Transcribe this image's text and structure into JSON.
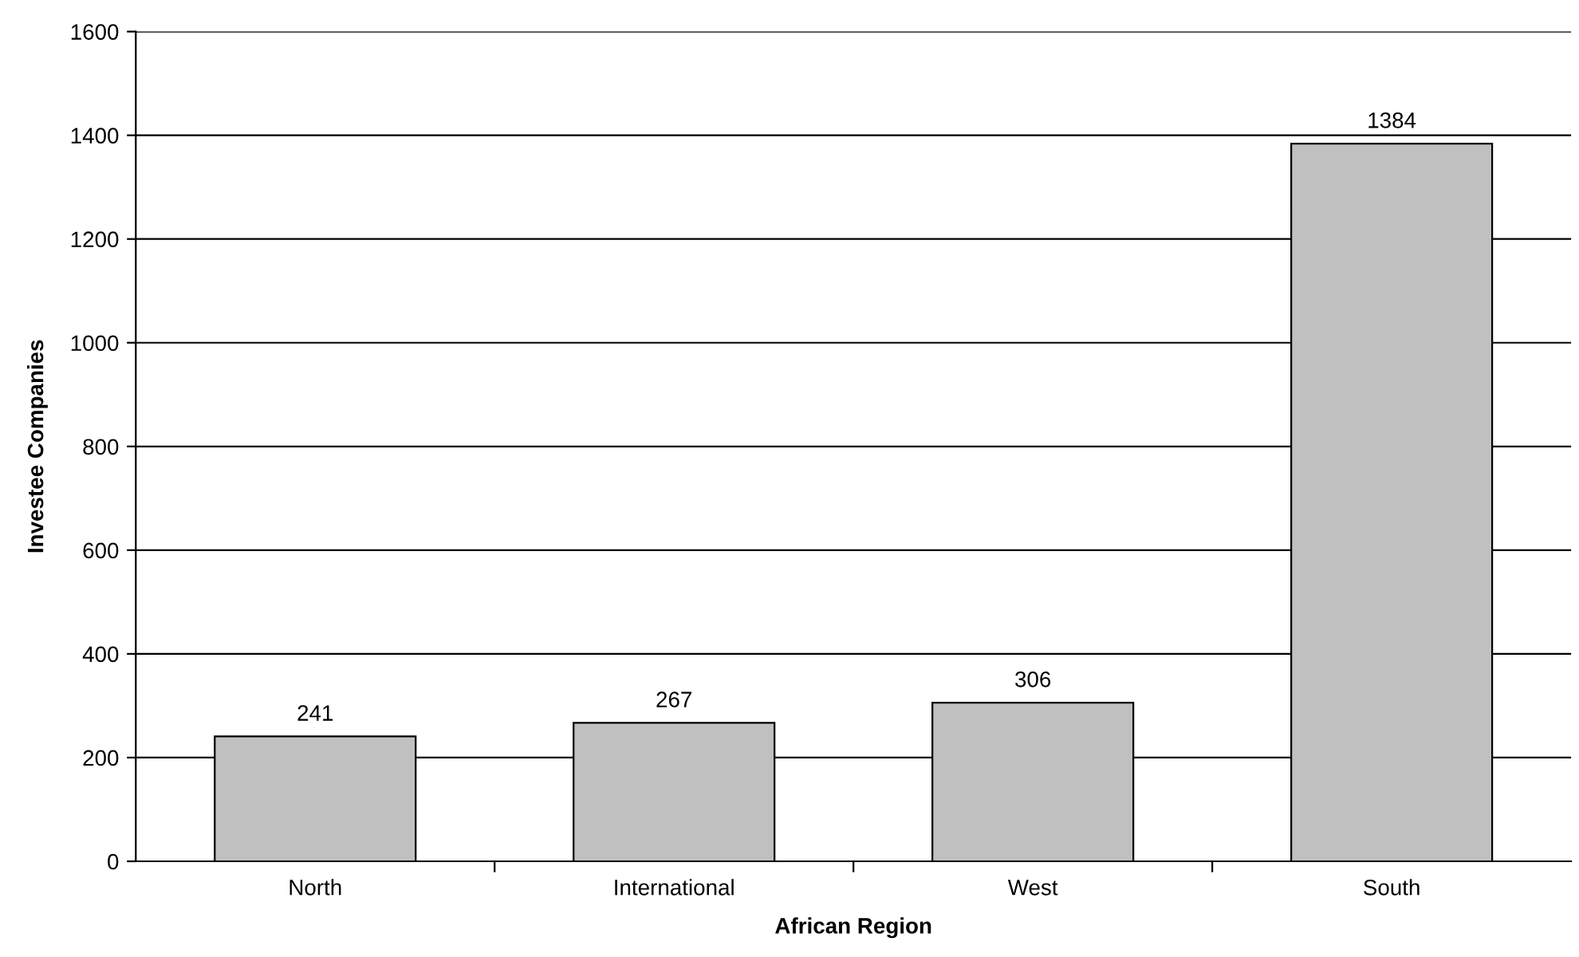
{
  "chart_data": {
    "type": "bar",
    "xlabel": "African Region",
    "ylabel": "Investee Companies",
    "categories": [
      "North",
      "International",
      "West",
      "South"
    ],
    "values": [
      241,
      267,
      306,
      1384
    ],
    "color": "#c0c0c0",
    "ylim": [
      0,
      1600
    ],
    "yticks": [
      0,
      200,
      400,
      600,
      800,
      1000,
      1200,
      1400,
      1600
    ],
    "grid": "y",
    "data_labels": true
  }
}
